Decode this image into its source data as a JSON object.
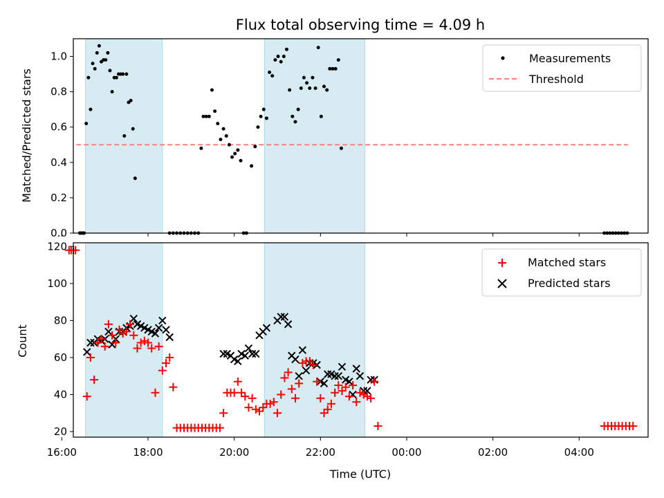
{
  "chart_data": [
    {
      "type": "scatter",
      "title": "Flux total observing time = 4.09 h",
      "xlabel": "",
      "ylabel": "Matched/Predicted stars",
      "xlim": [
        "16:16",
        "05:36"
      ],
      "ylim": [
        0,
        1.1
      ],
      "yticks": [
        "0.0",
        "0.2",
        "0.4",
        "0.6",
        "0.8",
        "1.0"
      ],
      "grid": false,
      "legend_position": "top-right",
      "shaded_intervals": [
        [
          "16:33",
          "18:20"
        ],
        [
          "20:42",
          "23:02"
        ]
      ],
      "threshold": {
        "name": "Threshold",
        "value": 0.5,
        "x_range": [
          "16:20",
          "05:08"
        ],
        "color": "#ff7f7f"
      },
      "series": [
        {
          "name": "Measurements",
          "color": "#000000",
          "marker": "dot",
          "points": [
            [
              "16:25",
              0
            ],
            [
              "16:27",
              0
            ],
            [
              "16:29",
              0
            ],
            [
              "16:31",
              0
            ],
            [
              "16:34",
              0.62
            ],
            [
              "16:37",
              0.88
            ],
            [
              "16:40",
              0.7
            ],
            [
              "16:43",
              0.96
            ],
            [
              "16:46",
              0.93
            ],
            [
              "16:49",
              1.02
            ],
            [
              "16:52",
              1.06
            ],
            [
              "16:55",
              0.97
            ],
            [
              "16:58",
              0.98
            ],
            [
              "17:01",
              0.98
            ],
            [
              "17:04",
              1.02
            ],
            [
              "17:07",
              0.92
            ],
            [
              "17:10",
              0.8
            ],
            [
              "17:13",
              0.88
            ],
            [
              "17:16",
              0.88
            ],
            [
              "17:19",
              0.9
            ],
            [
              "17:22",
              0.9
            ],
            [
              "17:25",
              0.9
            ],
            [
              "17:27",
              0.55
            ],
            [
              "17:30",
              0.9
            ],
            [
              "17:33",
              0.74
            ],
            [
              "17:36",
              0.75
            ],
            [
              "17:39",
              0.59
            ],
            [
              "17:42",
              0.31
            ],
            [
              "18:30",
              0
            ],
            [
              "18:35",
              0
            ],
            [
              "18:40",
              0
            ],
            [
              "18:45",
              0
            ],
            [
              "18:50",
              0
            ],
            [
              "18:55",
              0
            ],
            [
              "19:00",
              0
            ],
            [
              "19:05",
              0
            ],
            [
              "19:10",
              0
            ],
            [
              "19:14",
              0.48
            ],
            [
              "19:17",
              0.66
            ],
            [
              "19:21",
              0.66
            ],
            [
              "19:25",
              0.66
            ],
            [
              "19:29",
              0.81
            ],
            [
              "19:33",
              0.69
            ],
            [
              "19:37",
              0.62
            ],
            [
              "19:41",
              0.53
            ],
            [
              "19:45",
              0.59
            ],
            [
              "19:49",
              0.55
            ],
            [
              "19:53",
              0.5
            ],
            [
              "19:57",
              0.43
            ],
            [
              "20:01",
              0.45
            ],
            [
              "20:05",
              0.47
            ],
            [
              "20:09",
              0.41
            ],
            [
              "20:13",
              0
            ],
            [
              "20:17",
              0
            ],
            [
              "20:24",
              0.38
            ],
            [
              "20:29",
              0.49
            ],
            [
              "20:33",
              0.6
            ],
            [
              "20:37",
              0.66
            ],
            [
              "20:41",
              0.7
            ],
            [
              "20:45",
              0.65
            ],
            [
              "20:49",
              0.91
            ],
            [
              "20:53",
              0.89
            ],
            [
              "20:57",
              0.98
            ],
            [
              "21:01",
              1.0
            ],
            [
              "21:05",
              0.97
            ],
            [
              "21:09",
              1.0
            ],
            [
              "21:13",
              1.04
            ],
            [
              "21:17",
              0.81
            ],
            [
              "21:21",
              0.66
            ],
            [
              "21:25",
              0.63
            ],
            [
              "21:29",
              0.7
            ],
            [
              "21:33",
              0.82
            ],
            [
              "21:37",
              0.88
            ],
            [
              "21:41",
              0.85
            ],
            [
              "21:45",
              0.82
            ],
            [
              "21:49",
              0.88
            ],
            [
              "21:53",
              0.82
            ],
            [
              "21:57",
              1.05
            ],
            [
              "22:01",
              0.66
            ],
            [
              "22:05",
              0.83
            ],
            [
              "22:09",
              0.81
            ],
            [
              "22:13",
              0.93
            ],
            [
              "22:17",
              0.93
            ],
            [
              "22:21",
              0.93
            ],
            [
              "22:25",
              0.98
            ],
            [
              "22:29",
              0.48
            ],
            [
              "04:35",
              0
            ],
            [
              "04:39",
              0
            ],
            [
              "04:43",
              0
            ],
            [
              "04:47",
              0
            ],
            [
              "04:51",
              0
            ],
            [
              "04:55",
              0
            ],
            [
              "04:59",
              0
            ],
            [
              "05:03",
              0
            ],
            [
              "05:07",
              0
            ]
          ]
        }
      ]
    },
    {
      "type": "scatter",
      "title": "",
      "xlabel": "Time (UTC)",
      "ylabel": "Count",
      "xlim": [
        "16:16",
        "05:36"
      ],
      "ylim": [
        17,
        122
      ],
      "xticks": [
        "16:00",
        "18:00",
        "20:00",
        "22:00",
        "00:00",
        "02:00",
        "04:00"
      ],
      "yticks": [
        "20",
        "40",
        "60",
        "80",
        "100",
        "120"
      ],
      "grid": false,
      "legend_position": "top-right",
      "shaded_intervals": [
        [
          "16:33",
          "18:20"
        ],
        [
          "20:42",
          "23:02"
        ]
      ],
      "series": [
        {
          "name": "Matched stars",
          "color": "#ff0000",
          "marker": "plus",
          "points": [
            [
              "16:10",
              118
            ],
            [
              "16:13",
              118
            ],
            [
              "16:16",
              118
            ],
            [
              "16:19",
              118
            ],
            [
              "16:35",
              39
            ],
            [
              "16:40",
              60
            ],
            [
              "16:45",
              48
            ],
            [
              "16:50",
              68
            ],
            [
              "16:55",
              70
            ],
            [
              "17:00",
              66
            ],
            [
              "17:05",
              78
            ],
            [
              "17:10",
              72
            ],
            [
              "17:15",
              68
            ],
            [
              "17:20",
              75
            ],
            [
              "17:25",
              73
            ],
            [
              "17:30",
              74
            ],
            [
              "17:35",
              78
            ],
            [
              "17:40",
              72
            ],
            [
              "17:45",
              65
            ],
            [
              "17:50",
              68
            ],
            [
              "17:55",
              69
            ],
            [
              "18:00",
              68
            ],
            [
              "18:05",
              65
            ],
            [
              "18:10",
              41
            ],
            [
              "18:15",
              66
            ],
            [
              "18:20",
              53
            ],
            [
              "18:25",
              57
            ],
            [
              "18:30",
              60
            ],
            [
              "18:35",
              44
            ],
            [
              "18:40",
              22
            ],
            [
              "18:45",
              22
            ],
            [
              "18:50",
              22
            ],
            [
              "18:55",
              22
            ],
            [
              "19:00",
              22
            ],
            [
              "19:05",
              22
            ],
            [
              "19:10",
              22
            ],
            [
              "19:15",
              22
            ],
            [
              "19:20",
              22
            ],
            [
              "19:25",
              22
            ],
            [
              "19:30",
              22
            ],
            [
              "19:35",
              22
            ],
            [
              "19:40",
              22
            ],
            [
              "19:45",
              30
            ],
            [
              "19:50",
              41
            ],
            [
              "19:55",
              41
            ],
            [
              "20:00",
              41
            ],
            [
              "20:05",
              47
            ],
            [
              "20:10",
              41
            ],
            [
              "20:15",
              39
            ],
            [
              "20:20",
              33
            ],
            [
              "20:25",
              38
            ],
            [
              "20:30",
              32
            ],
            [
              "20:35",
              31
            ],
            [
              "20:40",
              33
            ],
            [
              "20:45",
              35
            ],
            [
              "20:50",
              35
            ],
            [
              "20:55",
              36
            ],
            [
              "21:00",
              30
            ],
            [
              "21:05",
              40
            ],
            [
              "21:10",
              49
            ],
            [
              "21:15",
              52
            ],
            [
              "21:20",
              43
            ],
            [
              "21:25",
              38
            ],
            [
              "21:30",
              46
            ],
            [
              "21:35",
              57
            ],
            [
              "21:40",
              58
            ],
            [
              "21:45",
              58
            ],
            [
              "21:50",
              56
            ],
            [
              "21:55",
              47
            ],
            [
              "22:00",
              38
            ],
            [
              "22:05",
              30
            ],
            [
              "22:10",
              32
            ],
            [
              "22:15",
              35
            ],
            [
              "22:20",
              41
            ],
            [
              "22:25",
              45
            ],
            [
              "22:30",
              42
            ],
            [
              "22:35",
              44
            ],
            [
              "22:40",
              39
            ],
            [
              "22:45",
              45
            ],
            [
              "22:50",
              36
            ],
            [
              "22:55",
              41
            ],
            [
              "23:00",
              40
            ],
            [
              "23:05",
              39
            ],
            [
              "23:10",
              38
            ],
            [
              "23:15",
              47
            ],
            [
              "23:20",
              23
            ],
            [
              "04:35",
              23
            ],
            [
              "04:40",
              23
            ],
            [
              "04:45",
              23
            ],
            [
              "04:50",
              23
            ],
            [
              "04:55",
              23
            ],
            [
              "05:00",
              23
            ],
            [
              "05:05",
              23
            ],
            [
              "05:10",
              23
            ],
            [
              "05:15",
              23
            ]
          ]
        },
        {
          "name": "Predicted stars",
          "color": "#000000",
          "marker": "x",
          "points": [
            [
              "16:35",
              63
            ],
            [
              "16:40",
              68
            ],
            [
              "16:45",
              68
            ],
            [
              "16:50",
              70
            ],
            [
              "16:55",
              69
            ],
            [
              "17:00",
              70
            ],
            [
              "17:05",
              74
            ],
            [
              "17:10",
              67
            ],
            [
              "17:15",
              70
            ],
            [
              "17:20",
              74
            ],
            [
              "17:25",
              74
            ],
            [
              "17:30",
              76
            ],
            [
              "17:35",
              77
            ],
            [
              "17:40",
              81
            ],
            [
              "17:45",
              78
            ],
            [
              "17:50",
              77
            ],
            [
              "17:55",
              76
            ],
            [
              "18:00",
              75
            ],
            [
              "18:05",
              74
            ],
            [
              "18:10",
              73
            ],
            [
              "18:15",
              76
            ],
            [
              "18:20",
              80
            ],
            [
              "18:25",
              75
            ],
            [
              "18:30",
              71
            ],
            [
              "19:45",
              62
            ],
            [
              "19:50",
              62
            ],
            [
              "19:55",
              61
            ],
            [
              "20:00",
              59
            ],
            [
              "20:05",
              58
            ],
            [
              "20:10",
              62
            ],
            [
              "20:15",
              61
            ],
            [
              "20:20",
              65
            ],
            [
              "20:25",
              62
            ],
            [
              "20:30",
              62
            ],
            [
              "20:35",
              72
            ],
            [
              "20:40",
              74
            ],
            [
              "20:45",
              76
            ],
            [
              "21:00",
              80
            ],
            [
              "21:05",
              82
            ],
            [
              "21:10",
              82
            ],
            [
              "21:15",
              78
            ],
            [
              "21:20",
              61
            ],
            [
              "21:25",
              59
            ],
            [
              "21:30",
              50
            ],
            [
              "21:35",
              64
            ],
            [
              "21:40",
              53
            ],
            [
              "21:45",
              57
            ],
            [
              "21:50",
              57
            ],
            [
              "21:55",
              56
            ],
            [
              "22:00",
              47
            ],
            [
              "22:05",
              46
            ],
            [
              "22:10",
              51
            ],
            [
              "22:15",
              51
            ],
            [
              "22:20",
              50
            ],
            [
              "22:25",
              50
            ],
            [
              "22:30",
              55
            ],
            [
              "22:35",
              48
            ],
            [
              "22:40",
              47
            ],
            [
              "22:45",
              40
            ],
            [
              "22:50",
              54
            ],
            [
              "22:55",
              50
            ],
            [
              "23:00",
              42
            ],
            [
              "23:05",
              42
            ],
            [
              "23:10",
              48
            ],
            [
              "23:15",
              48
            ]
          ]
        }
      ]
    }
  ]
}
